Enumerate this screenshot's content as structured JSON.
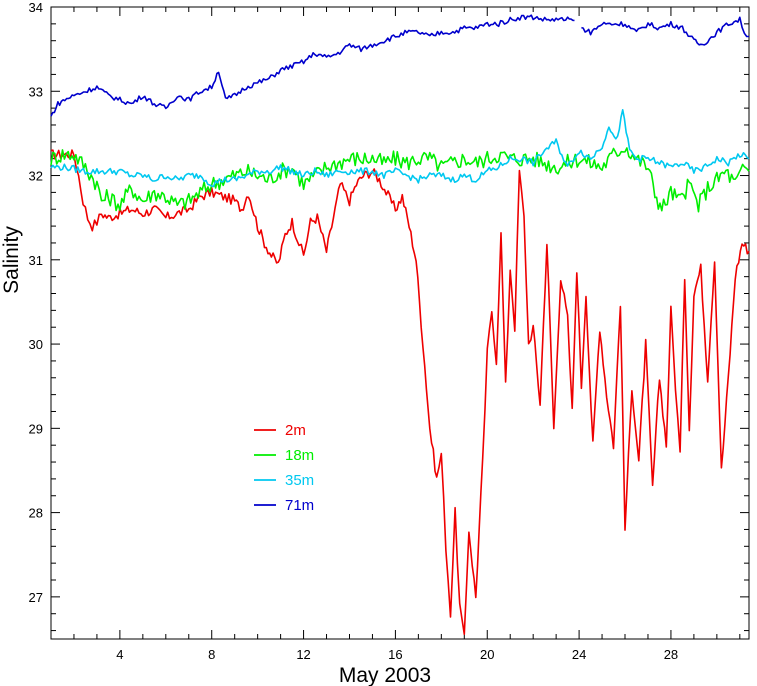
{
  "chart_data": {
    "type": "line",
    "title": "",
    "xlabel": "May 2003",
    "ylabel": "Salinity",
    "xlim": [
      1,
      31.4
    ],
    "ylim": [
      26.5,
      34
    ],
    "xticks": [
      4,
      8,
      12,
      16,
      20,
      24,
      28
    ],
    "yticks": [
      27,
      28,
      29,
      30,
      31,
      32,
      33,
      34
    ],
    "grid": false,
    "legend_position": "lower-left inside plot",
    "series": [
      {
        "name": "2m",
        "color": "#ee0000",
        "x": [
          1.0,
          1.5,
          2.0,
          2.2,
          2.4,
          2.6,
          2.8,
          3.0,
          3.2,
          3.5,
          4.0,
          4.5,
          5.0,
          5.5,
          6.0,
          6.5,
          7.0,
          7.5,
          8.0,
          8.5,
          9.0,
          9.3,
          9.6,
          10.0,
          10.3,
          10.6,
          10.9,
          11.2,
          11.5,
          11.8,
          12.0,
          12.3,
          12.6,
          13.0,
          13.3,
          13.6,
          14.0,
          14.3,
          14.6,
          15.0,
          15.3,
          15.6,
          16.0,
          16.3,
          16.6,
          16.9,
          17.2,
          17.5,
          17.8,
          18.0,
          18.2,
          18.4,
          18.6,
          18.8,
          19.0,
          19.2,
          19.5,
          19.8,
          20.0,
          20.2,
          20.4,
          20.6,
          20.8,
          21.0,
          21.2,
          21.4,
          21.6,
          21.8,
          22.0,
          22.3,
          22.6,
          22.9,
          23.2,
          23.5,
          23.7,
          23.9,
          24.1,
          24.3,
          24.6,
          24.9,
          25.2,
          25.5,
          25.8,
          26.0,
          26.3,
          26.6,
          26.9,
          27.2,
          27.5,
          27.8,
          28.0,
          28.2,
          28.4,
          28.6,
          28.8,
          29.0,
          29.3,
          29.6,
          29.9,
          30.2,
          30.5,
          30.8,
          31.1,
          31.4
        ],
        "y": [
          32.25,
          32.25,
          32.25,
          32.0,
          31.7,
          31.5,
          31.4,
          31.45,
          31.55,
          31.5,
          31.55,
          31.6,
          31.55,
          31.6,
          31.5,
          31.55,
          31.6,
          31.75,
          31.8,
          31.75,
          31.7,
          31.6,
          31.8,
          31.4,
          31.2,
          31.05,
          30.95,
          31.3,
          31.45,
          31.2,
          31.05,
          31.45,
          31.5,
          31.1,
          31.5,
          31.9,
          31.7,
          31.9,
          32.0,
          32.05,
          31.95,
          31.8,
          31.6,
          31.75,
          31.4,
          31.0,
          30.0,
          29.0,
          28.4,
          28.7,
          27.6,
          26.8,
          28.0,
          26.9,
          26.5,
          27.8,
          27.0,
          28.6,
          29.9,
          30.4,
          29.8,
          31.3,
          29.5,
          30.9,
          30.2,
          32.05,
          31.5,
          30.0,
          30.2,
          29.3,
          31.2,
          29.0,
          30.8,
          30.3,
          29.2,
          30.9,
          29.5,
          30.6,
          28.8,
          30.2,
          29.4,
          28.8,
          30.5,
          27.8,
          29.5,
          28.6,
          30.0,
          28.3,
          29.6,
          28.8,
          30.4,
          29.5,
          28.7,
          30.8,
          29.0,
          30.6,
          30.9,
          29.6,
          31.0,
          28.5,
          29.6,
          30.8,
          31.2,
          31.1
        ],
        "y_extra": []
      },
      {
        "name": "18m",
        "color": "#00ee00",
        "x": [
          1.0,
          1.5,
          2.0,
          2.5,
          3.0,
          3.2,
          3.5,
          4.0,
          4.5,
          5.0,
          5.5,
          6.0,
          6.5,
          7.0,
          7.5,
          8.0,
          8.5,
          9.0,
          9.5,
          10.0,
          10.5,
          11.0,
          11.5,
          12.0,
          12.5,
          13.0,
          13.5,
          14.0,
          14.5,
          15.0,
          15.5,
          16.0,
          16.5,
          17.0,
          17.5,
          18.0,
          18.5,
          19.0,
          19.5,
          20.0,
          20.5,
          21.0,
          21.5,
          22.0,
          22.5,
          23.0,
          23.5,
          24.0,
          24.5,
          25.0,
          25.5,
          26.0,
          26.5,
          27.0,
          27.3,
          27.6,
          28.0,
          28.4,
          28.8,
          29.2,
          29.6,
          30.0,
          30.4,
          30.8,
          31.2,
          31.4
        ],
        "y": [
          32.2,
          32.25,
          32.25,
          32.1,
          31.9,
          31.7,
          31.75,
          31.65,
          31.85,
          31.7,
          31.8,
          31.75,
          31.65,
          31.7,
          31.8,
          31.9,
          31.95,
          32.0,
          32.05,
          32.0,
          31.95,
          32.05,
          32.1,
          31.9,
          32.0,
          32.1,
          32.15,
          32.2,
          32.2,
          32.2,
          32.15,
          32.2,
          32.15,
          32.2,
          32.2,
          32.1,
          32.15,
          32.2,
          32.15,
          32.2,
          32.25,
          32.2,
          32.2,
          32.2,
          32.15,
          32.1,
          32.15,
          32.2,
          32.15,
          32.1,
          32.25,
          32.35,
          32.2,
          32.1,
          31.8,
          31.6,
          31.8,
          31.7,
          31.9,
          31.65,
          31.85,
          31.95,
          32.05,
          31.9,
          32.1,
          32.05
        ],
        "y_extra": []
      },
      {
        "name": "35m",
        "color": "#00c8f0",
        "x": [
          1.0,
          1.5,
          2.0,
          2.5,
          3.0,
          3.5,
          4.0,
          4.5,
          5.0,
          5.5,
          6.0,
          6.5,
          7.0,
          7.5,
          8.0,
          8.5,
          9.0,
          9.5,
          10.0,
          10.5,
          11.0,
          11.5,
          12.0,
          12.5,
          13.0,
          13.5,
          14.0,
          14.5,
          15.0,
          15.5,
          16.0,
          16.5,
          17.0,
          17.5,
          18.0,
          18.5,
          19.0,
          19.5,
          20.0,
          20.5,
          21.0,
          21.5,
          22.0,
          22.5,
          23.0,
          23.5,
          24.0,
          24.5,
          25.0,
          25.3,
          25.6,
          25.9,
          26.2,
          26.5,
          27.0,
          27.5,
          28.0,
          28.5,
          29.0,
          29.5,
          30.0,
          30.5,
          31.0,
          31.4
        ],
        "y": [
          32.1,
          32.1,
          32.08,
          32.05,
          32.05,
          32.05,
          32.05,
          32.0,
          32.0,
          31.95,
          32.0,
          31.95,
          32.0,
          32.0,
          31.9,
          31.95,
          31.95,
          32.0,
          32.05,
          32.05,
          32.1,
          32.05,
          32.0,
          32.05,
          32.0,
          32.05,
          32.05,
          32.05,
          32.05,
          32.0,
          32.05,
          32.0,
          31.95,
          32.0,
          32.0,
          31.95,
          32.0,
          31.95,
          32.05,
          32.1,
          32.2,
          32.2,
          32.15,
          32.3,
          32.4,
          32.1,
          32.3,
          32.2,
          32.35,
          32.6,
          32.4,
          32.75,
          32.3,
          32.2,
          32.2,
          32.15,
          32.1,
          32.15,
          32.05,
          32.1,
          32.2,
          32.15,
          32.25,
          32.2
        ],
        "y_extra": []
      },
      {
        "name": "71m",
        "color": "#0000cc",
        "x": [
          1.0,
          1.3,
          1.6,
          2.0,
          2.5,
          3.0,
          3.5,
          4.0,
          4.5,
          5.0,
          5.5,
          6.0,
          6.5,
          7.0,
          7.5,
          8.0,
          8.3,
          8.6,
          9.0,
          9.5,
          10.0,
          10.5,
          11.0,
          11.5,
          12.0,
          12.5,
          13.0,
          13.5,
          14.0,
          14.5,
          15.0,
          15.5,
          16.0,
          16.5,
          17.0,
          17.5,
          18.0,
          18.5,
          19.0,
          19.5,
          20.0,
          20.5,
          21.0,
          21.5,
          22.0,
          22.5,
          23.0,
          23.5,
          23.8
        ],
        "y": [
          32.7,
          32.85,
          32.9,
          32.95,
          33.0,
          33.05,
          32.95,
          32.9,
          32.85,
          32.95,
          32.85,
          32.8,
          32.95,
          32.9,
          33.0,
          33.05,
          33.25,
          32.9,
          32.95,
          33.05,
          33.1,
          33.15,
          33.25,
          33.3,
          33.35,
          33.45,
          33.4,
          33.45,
          33.55,
          33.5,
          33.55,
          33.6,
          33.65,
          33.7,
          33.7,
          33.65,
          33.7,
          33.7,
          33.75,
          33.75,
          33.8,
          33.8,
          33.85,
          33.88,
          33.88,
          33.85,
          33.85,
          33.85,
          33.84
        ],
        "x2": [
          24.1,
          24.5,
          25.0,
          25.5,
          26.0,
          26.5,
          27.0,
          27.5,
          28.0,
          28.5,
          29.0,
          29.3,
          29.6,
          30.0,
          30.5,
          31.0,
          31.2,
          31.4
        ],
        "y2": [
          33.75,
          33.7,
          33.8,
          33.8,
          33.8,
          33.7,
          33.8,
          33.75,
          33.8,
          33.75,
          33.6,
          33.55,
          33.6,
          33.7,
          33.8,
          33.85,
          33.7,
          33.65
        ],
        "y_extra": []
      }
    ]
  }
}
